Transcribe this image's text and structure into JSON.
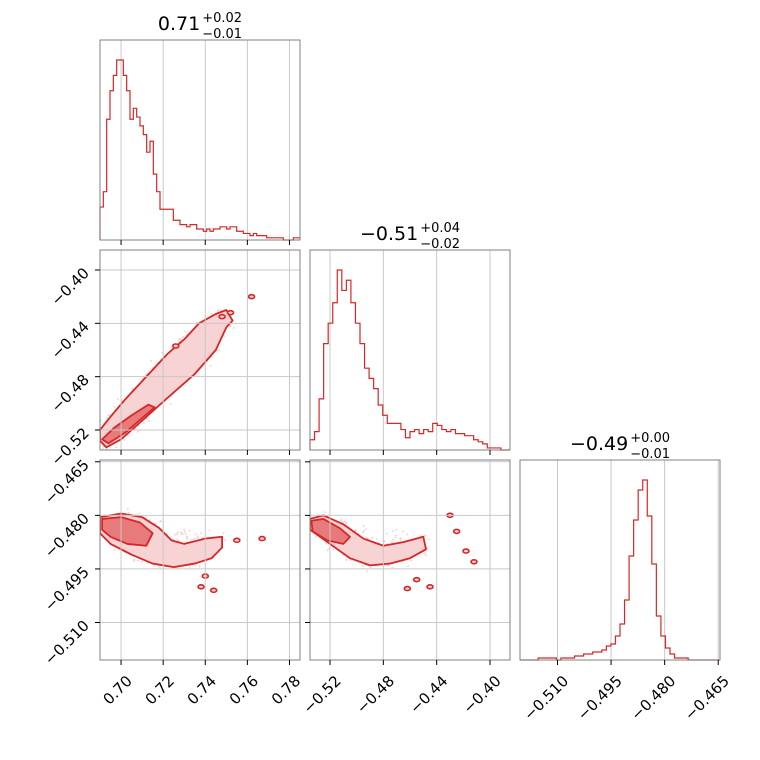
{
  "colors": {
    "accent": "#d62728",
    "fill_dark": "#e87a7b",
    "fill_light": "#f7d3d3",
    "grid": "#c8c8c8",
    "frame": "#808080",
    "scatter": "#f2b8b8"
  },
  "chart_data": {
    "type": "corner",
    "parameters": [
      {
        "title_main": "0.71",
        "title_sup": "+0.02",
        "title_sub": "−0.01",
        "range": [
          0.69,
          0.785
        ],
        "ticks": [
          0.7,
          0.72,
          0.74,
          0.76,
          0.78
        ],
        "tick_labels": [
          "0.70",
          "0.72",
          "0.74",
          "0.76",
          "0.78"
        ],
        "hist_edges": [
          0.69,
          0.785
        ],
        "hist_counts": [
          15,
          22,
          55,
          68,
          75,
          82,
          82,
          75,
          68,
          55,
          60,
          56,
          52,
          48,
          40,
          45,
          30,
          22,
          14,
          14,
          14,
          14,
          9,
          9,
          7,
          7,
          6,
          7,
          7,
          5,
          5,
          4,
          5,
          4,
          5,
          5,
          6,
          6,
          5,
          6,
          6,
          4,
          4,
          3,
          3,
          2,
          3,
          2,
          2,
          2,
          1,
          1,
          1,
          1,
          1,
          0,
          0,
          0,
          1,
          1
        ]
      },
      {
        "title_main": "−0.51",
        "title_sup": "+0.04",
        "title_sub": "−0.02",
        "range": [
          -0.535,
          -0.385
        ],
        "ticks": [
          -0.52,
          -0.48,
          -0.44,
          -0.4
        ],
        "tick_labels": [
          "−0.52",
          "−0.48",
          "−0.44",
          "−0.40"
        ],
        "hist_edges": [
          -0.535,
          -0.385
        ],
        "hist_counts": [
          5,
          9,
          25,
          52,
          62,
          72,
          88,
          78,
          83,
          72,
          62,
          52,
          40,
          35,
          30,
          22,
          17,
          13,
          13,
          13,
          10,
          6,
          9,
          10,
          8,
          10,
          9,
          13,
          12,
          10,
          9,
          10,
          8,
          8,
          7,
          7,
          5,
          4,
          3,
          1,
          1,
          1,
          0,
          0
        ]
      },
      {
        "title_main": "−0.49",
        "title_sup": "+0.00",
        "title_sub": "−0.01",
        "range": [
          -0.5205,
          -0.4645
        ],
        "ticks": [
          -0.51,
          -0.495,
          -0.48,
          -0.465
        ],
        "tick_labels": [
          "−0.510",
          "−0.495",
          "−0.480",
          "−0.465"
        ],
        "hist_edges": [
          -0.5205,
          -0.4645
        ],
        "hist_counts": [
          0,
          0,
          0,
          0,
          1,
          1,
          1,
          1,
          0,
          1,
          1,
          1,
          2,
          2,
          3,
          3,
          4,
          4,
          5,
          7,
          8,
          12,
          18,
          30,
          52,
          70,
          85,
          90,
          72,
          48,
          22,
          12,
          6,
          3,
          1,
          1,
          1,
          0,
          0,
          0,
          0,
          0,
          0,
          0
        ]
      }
    ],
    "panels_2d": [
      {
        "x_param": 0,
        "y_param": 1,
        "contours": [
          {
            "level": "outer",
            "points": [
              [
                0.69,
                -0.528
              ],
              [
                0.693,
                -0.533
              ],
              [
                0.7,
                -0.527
              ],
              [
                0.71,
                -0.513
              ],
              [
                0.722,
                -0.496
              ],
              [
                0.735,
                -0.478
              ],
              [
                0.745,
                -0.46
              ],
              [
                0.75,
                -0.443
              ],
              [
                0.753,
                -0.438
              ],
              [
                0.75,
                -0.43
              ],
              [
                0.745,
                -0.433
              ],
              [
                0.737,
                -0.44
              ],
              [
                0.73,
                -0.452
              ],
              [
                0.722,
                -0.463
              ],
              [
                0.712,
                -0.48
              ],
              [
                0.702,
                -0.497
              ],
              [
                0.695,
                -0.51
              ],
              [
                0.69,
                -0.52
              ]
            ]
          },
          {
            "level": "inner",
            "points": [
              [
                0.691,
                -0.527
              ],
              [
                0.694,
                -0.53
              ],
              [
                0.702,
                -0.522
              ],
              [
                0.71,
                -0.511
              ],
              [
                0.716,
                -0.503
              ],
              [
                0.713,
                -0.501
              ],
              [
                0.705,
                -0.509
              ],
              [
                0.697,
                -0.518
              ]
            ]
          }
        ],
        "islands": [
          [
            0.748,
            -0.435
          ],
          [
            0.752,
            -0.432
          ],
          [
            0.762,
            -0.42
          ],
          [
            0.726,
            -0.457
          ]
        ]
      },
      {
        "x_param": 0,
        "y_param": 2,
        "contours": [
          {
            "level": "outer",
            "points": [
              [
                0.69,
                -0.4805
              ],
              [
                0.7,
                -0.4795
              ],
              [
                0.71,
                -0.4805
              ],
              [
                0.718,
                -0.4835
              ],
              [
                0.724,
                -0.487
              ],
              [
                0.73,
                -0.488
              ],
              [
                0.74,
                -0.4865
              ],
              [
                0.748,
                -0.486
              ],
              [
                0.748,
                -0.489
              ],
              [
                0.743,
                -0.492
              ],
              [
                0.735,
                -0.4935
              ],
              [
                0.725,
                -0.4945
              ],
              [
                0.715,
                -0.4935
              ],
              [
                0.705,
                -0.491
              ],
              [
                0.695,
                -0.488
              ],
              [
                0.69,
                -0.485
              ]
            ]
          },
          {
            "level": "inner",
            "points": [
              [
                0.691,
                -0.481
              ],
              [
                0.7,
                -0.4805
              ],
              [
                0.709,
                -0.482
              ],
              [
                0.715,
                -0.485
              ],
              [
                0.712,
                -0.4885
              ],
              [
                0.703,
                -0.488
              ],
              [
                0.695,
                -0.486
              ],
              [
                0.691,
                -0.484
              ]
            ]
          }
        ],
        "islands": [
          [
            0.755,
            -0.487
          ],
          [
            0.767,
            -0.4865
          ],
          [
            0.74,
            -0.497
          ],
          [
            0.738,
            -0.5
          ],
          [
            0.744,
            -0.501
          ]
        ]
      },
      {
        "x_param": 1,
        "y_param": 2,
        "contours": [
          {
            "level": "outer",
            "points": [
              [
                -0.535,
                -0.481
              ],
              [
                -0.525,
                -0.48
              ],
              [
                -0.51,
                -0.4825
              ],
              [
                -0.495,
                -0.4865
              ],
              [
                -0.48,
                -0.4885
              ],
              [
                -0.465,
                -0.4875
              ],
              [
                -0.45,
                -0.486
              ],
              [
                -0.448,
                -0.4895
              ],
              [
                -0.46,
                -0.492
              ],
              [
                -0.475,
                -0.4935
              ],
              [
                -0.49,
                -0.494
              ],
              [
                -0.505,
                -0.492
              ],
              [
                -0.52,
                -0.488
              ],
              [
                -0.535,
                -0.484
              ]
            ]
          },
          {
            "level": "inner",
            "points": [
              [
                -0.534,
                -0.4815
              ],
              [
                -0.525,
                -0.481
              ],
              [
                -0.513,
                -0.4835
              ],
              [
                -0.505,
                -0.486
              ],
              [
                -0.51,
                -0.488
              ],
              [
                -0.522,
                -0.487
              ],
              [
                -0.533,
                -0.4845
              ]
            ]
          }
        ],
        "islands": [
          [
            -0.43,
            -0.48
          ],
          [
            -0.425,
            -0.4845
          ],
          [
            -0.418,
            -0.49
          ],
          [
            -0.412,
            -0.493
          ],
          [
            -0.455,
            -0.498
          ],
          [
            -0.462,
            -0.5005
          ],
          [
            -0.445,
            -0.5
          ]
        ]
      }
    ]
  }
}
